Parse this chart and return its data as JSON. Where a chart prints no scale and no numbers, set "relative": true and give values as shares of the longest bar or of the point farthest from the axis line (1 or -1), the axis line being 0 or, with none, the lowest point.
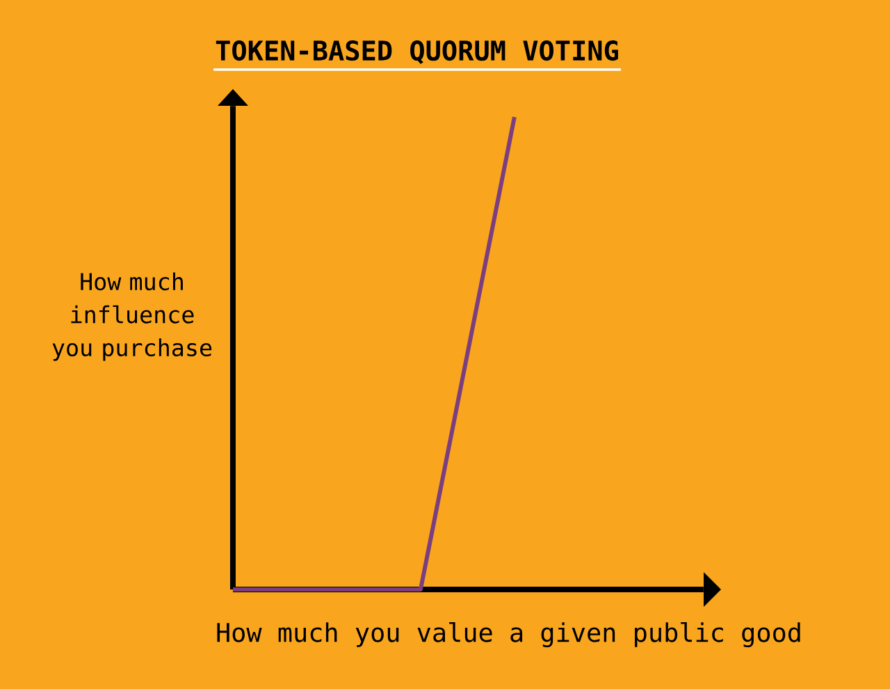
{
  "chart_data": {
    "type": "line",
    "title": "TOKEN-BASED QUORUM VOTING",
    "xlabel": "How much you value a given public good",
    "ylabel": "How much influence you purchase",
    "categories": [
      null,
      null,
      null,
      null
    ],
    "relative": true,
    "series": [
      {
        "color": "#7b3f7f",
        "values": [
          0,
          0,
          0,
          1
        ]
      }
    ]
  }
}
